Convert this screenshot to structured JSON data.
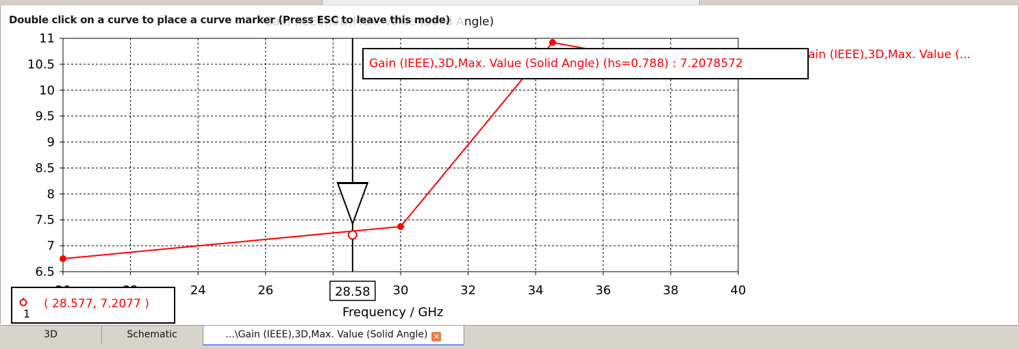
{
  "hint": "Double click on a curve to place a curve marker (Press ESC to leave this mode)",
  "title_partial": {
    "ghost": "Gain (IEEE),3D,Max. Value (Solid A",
    "visible": "ngle)"
  },
  "callout_text": "Gain (IEEE),3D,Max. Value (Solid Angle) (hs=0.788) : 7.2078572",
  "legend_text": "ain (IEEE),3D,Max. Value (...",
  "coord_readout": {
    "text": "( 28.577, 7.2077 )",
    "marker_number": "1"
  },
  "marker_x_label": "28.58",
  "tabs": [
    {
      "label": "3D"
    },
    {
      "label": "Schematic"
    },
    {
      "label": "...\\Gain (IEEE),3D,Max. Value (Solid Angle)",
      "close_icon": "close-icon"
    }
  ],
  "colors": {
    "curve": "#ff0000",
    "marker_line": "#000000",
    "grid": "#000000"
  },
  "chart_data": {
    "type": "line",
    "title": "",
    "xlabel": "Frequency / GHz",
    "ylabel": "",
    "xlim": [
      20,
      40
    ],
    "ylim": [
      6.5,
      11
    ],
    "grid": true,
    "x_ticks": [
      "20",
      "22",
      "24",
      "26",
      "28.58",
      "30",
      "32",
      "34",
      "36",
      "38",
      "40"
    ],
    "y_ticks": [
      "6.5",
      "7",
      "7.5",
      "8",
      "8.5",
      "9",
      "9.5",
      "10",
      "10.5",
      "11"
    ],
    "series": [
      {
        "name": "Gain (IEEE),3D,Max. Value (Solid Angle)",
        "color": "#ff0000",
        "x": [
          20,
          30,
          34.5,
          35.5
        ],
        "y": [
          6.75,
          7.37,
          10.92,
          10.8
        ]
      }
    ],
    "marker": {
      "x": 28.577,
      "y": 7.2077
    }
  }
}
